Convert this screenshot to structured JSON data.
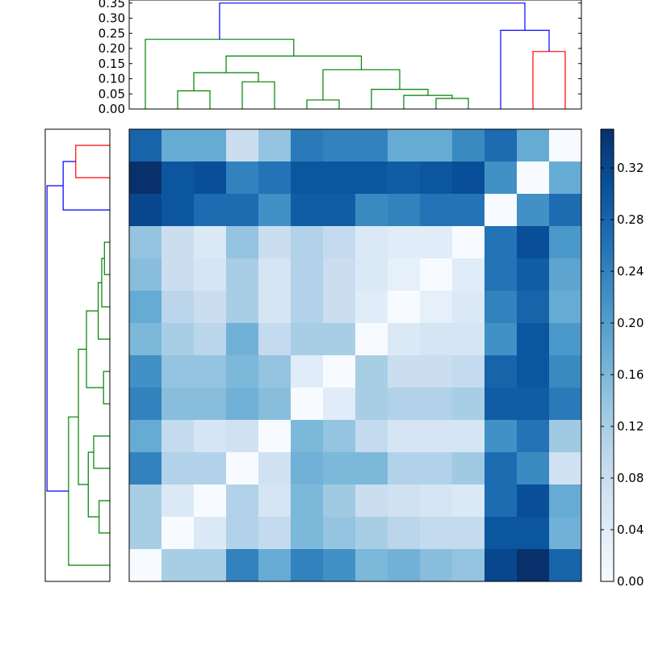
{
  "chart_data": [
    {
      "type": "dendrogram",
      "orientation": "top",
      "ylim": [
        0,
        0.36
      ],
      "yticks": [
        "0.00",
        "0.05",
        "0.10",
        "0.15",
        "0.20",
        "0.25",
        "0.30",
        "0.35"
      ],
      "yticks_values": [
        0,
        0.05,
        0.1,
        0.15,
        0.2,
        0.25,
        0.3,
        0.35
      ],
      "links": [
        {
          "color": "#008000",
          "xs": [
            2,
            2,
            3,
            3
          ],
          "ys": [
            0,
            0.06,
            0.06,
            0
          ]
        },
        {
          "color": "#008000",
          "xs": [
            4,
            4,
            5,
            5
          ],
          "ys": [
            0,
            0.09,
            0.09,
            0
          ]
        },
        {
          "color": "#008000",
          "xs": [
            2.5,
            2.5,
            4.5,
            4.5
          ],
          "ys": [
            0.06,
            0.12,
            0.12,
            0.09
          ]
        },
        {
          "color": "#008000",
          "xs": [
            6,
            6,
            7,
            7
          ],
          "ys": [
            0,
            0.03,
            0.03,
            0
          ]
        },
        {
          "color": "#008000",
          "xs": [
            10,
            10,
            11,
            11
          ],
          "ys": [
            0,
            0.035,
            0.035,
            0
          ]
        },
        {
          "color": "#008000",
          "xs": [
            9,
            9,
            10.5,
            10.5
          ],
          "ys": [
            0,
            0.045,
            0.045,
            0.035
          ]
        },
        {
          "color": "#008000",
          "xs": [
            8,
            8,
            9.75,
            9.75
          ],
          "ys": [
            0,
            0.065,
            0.065,
            0.045
          ]
        },
        {
          "color": "#008000",
          "xs": [
            6.5,
            6.5,
            8.875,
            8.875
          ],
          "ys": [
            0.03,
            0.13,
            0.13,
            0.065
          ]
        },
        {
          "color": "#008000",
          "xs": [
            3.5,
            3.5,
            7.6875,
            7.6875
          ],
          "ys": [
            0.12,
            0.175,
            0.175,
            0.13
          ]
        },
        {
          "color": "#008000",
          "xs": [
            1,
            1,
            5.59375,
            5.59375
          ],
          "ys": [
            0,
            0.23,
            0.23,
            0.175
          ]
        },
        {
          "color": "#ff0000",
          "xs": [
            13,
            13,
            14,
            14
          ],
          "ys": [
            0,
            0.19,
            0.19,
            0
          ]
        },
        {
          "color": "#0000ff",
          "xs": [
            12,
            12,
            13.5,
            13.5
          ],
          "ys": [
            0,
            0.26,
            0.26,
            0.19
          ]
        },
        {
          "color": "#0000ff",
          "xs": [
            3.296875,
            3.296875,
            12.75,
            12.75
          ],
          "ys": [
            0.23,
            0.35,
            0.35,
            0.26
          ]
        }
      ]
    },
    {
      "type": "dendrogram",
      "orientation": "left",
      "links": [
        {
          "color": "#ff0000",
          "ys": [
            1,
            1,
            2,
            2
          ],
          "xs": [
            0,
            0.19,
            0.19,
            0
          ]
        },
        {
          "color": "#0000ff",
          "ys": [
            1.5,
            1.5,
            3,
            3
          ],
          "xs": [
            0.19,
            0.26,
            0.26,
            0
          ]
        },
        {
          "color": "#008000",
          "ys": [
            4,
            4,
            5,
            5
          ],
          "xs": [
            0,
            0.03,
            0.03,
            0
          ]
        },
        {
          "color": "#008000",
          "ys": [
            4.5,
            4.5,
            6,
            6
          ],
          "xs": [
            0.03,
            0.045,
            0.045,
            0
          ]
        },
        {
          "color": "#008000",
          "ys": [
            5.25,
            5.25,
            7,
            7
          ],
          "xs": [
            0.045,
            0.065,
            0.065,
            0
          ]
        },
        {
          "color": "#008000",
          "ys": [
            8,
            8,
            9,
            9
          ],
          "xs": [
            0,
            0.035,
            0.035,
            0
          ]
        },
        {
          "color": "#008000",
          "ys": [
            6.125,
            6.125,
            8.5,
            8.5
          ],
          "xs": [
            0.065,
            0.13,
            0.13,
            0.035
          ]
        },
        {
          "color": "#008000",
          "ys": [
            10,
            10,
            11,
            11
          ],
          "xs": [
            0,
            0.09,
            0.09,
            0
          ]
        },
        {
          "color": "#008000",
          "ys": [
            12,
            12,
            13,
            13
          ],
          "xs": [
            0,
            0.06,
            0.06,
            0
          ]
        },
        {
          "color": "#008000",
          "ys": [
            10.5,
            10.5,
            12.5,
            12.5
          ],
          "xs": [
            0.09,
            0.12,
            0.12,
            0.06
          ]
        },
        {
          "color": "#008000",
          "ys": [
            7.3125,
            7.3125,
            11.5,
            11.5
          ],
          "xs": [
            0.13,
            0.175,
            0.175,
            0.12
          ]
        },
        {
          "color": "#008000",
          "ys": [
            9.40625,
            9.40625,
            14,
            14
          ],
          "xs": [
            0.175,
            0.23,
            0.23,
            0
          ]
        },
        {
          "color": "#0000ff",
          "ys": [
            2.25,
            2.25,
            11.703125,
            11.703125
          ],
          "xs": [
            0.26,
            0.35,
            0.35,
            0.23
          ]
        }
      ]
    },
    {
      "type": "heatmap",
      "colormap": "Blues",
      "vmin": 0,
      "vmax": 0.35,
      "rows": 14,
      "cols": 14,
      "values": [
        [
          0.28,
          0.18,
          0.18,
          0.08,
          0.14,
          0.25,
          0.24,
          0.24,
          0.18,
          0.18,
          0.23,
          0.27,
          0.18,
          0.0
        ],
        [
          0.35,
          0.3,
          0.31,
          0.24,
          0.26,
          0.3,
          0.3,
          0.3,
          0.29,
          0.3,
          0.31,
          0.22,
          0.0,
          0.18
        ],
        [
          0.32,
          0.3,
          0.27,
          0.27,
          0.22,
          0.29,
          0.29,
          0.23,
          0.24,
          0.26,
          0.26,
          0.0,
          0.22,
          0.27
        ],
        [
          0.14,
          0.08,
          0.05,
          0.14,
          0.08,
          0.11,
          0.09,
          0.05,
          0.04,
          0.04,
          0.0,
          0.26,
          0.31,
          0.21
        ],
        [
          0.15,
          0.08,
          0.06,
          0.12,
          0.06,
          0.11,
          0.08,
          0.05,
          0.03,
          0.0,
          0.04,
          0.26,
          0.29,
          0.19
        ],
        [
          0.18,
          0.1,
          0.08,
          0.12,
          0.06,
          0.11,
          0.08,
          0.04,
          0.0,
          0.03,
          0.05,
          0.24,
          0.28,
          0.18
        ],
        [
          0.16,
          0.12,
          0.1,
          0.17,
          0.09,
          0.12,
          0.12,
          0.0,
          0.05,
          0.06,
          0.06,
          0.22,
          0.3,
          0.21
        ],
        [
          0.22,
          0.14,
          0.14,
          0.16,
          0.14,
          0.04,
          0.0,
          0.12,
          0.08,
          0.08,
          0.09,
          0.28,
          0.3,
          0.23
        ],
        [
          0.24,
          0.15,
          0.15,
          0.17,
          0.15,
          0.0,
          0.04,
          0.12,
          0.11,
          0.11,
          0.12,
          0.29,
          0.29,
          0.25
        ],
        [
          0.18,
          0.09,
          0.06,
          0.07,
          0.0,
          0.16,
          0.14,
          0.09,
          0.06,
          0.06,
          0.06,
          0.22,
          0.26,
          0.13
        ],
        [
          0.24,
          0.11,
          0.11,
          0.0,
          0.07,
          0.17,
          0.16,
          0.16,
          0.11,
          0.11,
          0.13,
          0.27,
          0.23,
          0.07
        ],
        [
          0.12,
          0.05,
          0.0,
          0.11,
          0.06,
          0.16,
          0.13,
          0.08,
          0.07,
          0.06,
          0.05,
          0.27,
          0.31,
          0.18
        ],
        [
          0.12,
          0.0,
          0.05,
          0.11,
          0.09,
          0.16,
          0.14,
          0.12,
          0.1,
          0.09,
          0.09,
          0.3,
          0.3,
          0.17
        ],
        [
          0.0,
          0.12,
          0.12,
          0.24,
          0.18,
          0.24,
          0.22,
          0.16,
          0.17,
          0.15,
          0.14,
          0.32,
          0.35,
          0.28
        ]
      ]
    },
    {
      "type": "colorbar",
      "colormap": "Blues",
      "vmin": 0,
      "vmax": 0.35,
      "ticks": [
        "0.00",
        "0.04",
        "0.08",
        "0.12",
        "0.16",
        "0.20",
        "0.24",
        "0.28",
        "0.32"
      ],
      "ticks_values": [
        0,
        0.04,
        0.08,
        0.12,
        0.16,
        0.2,
        0.24,
        0.28,
        0.32
      ]
    }
  ]
}
